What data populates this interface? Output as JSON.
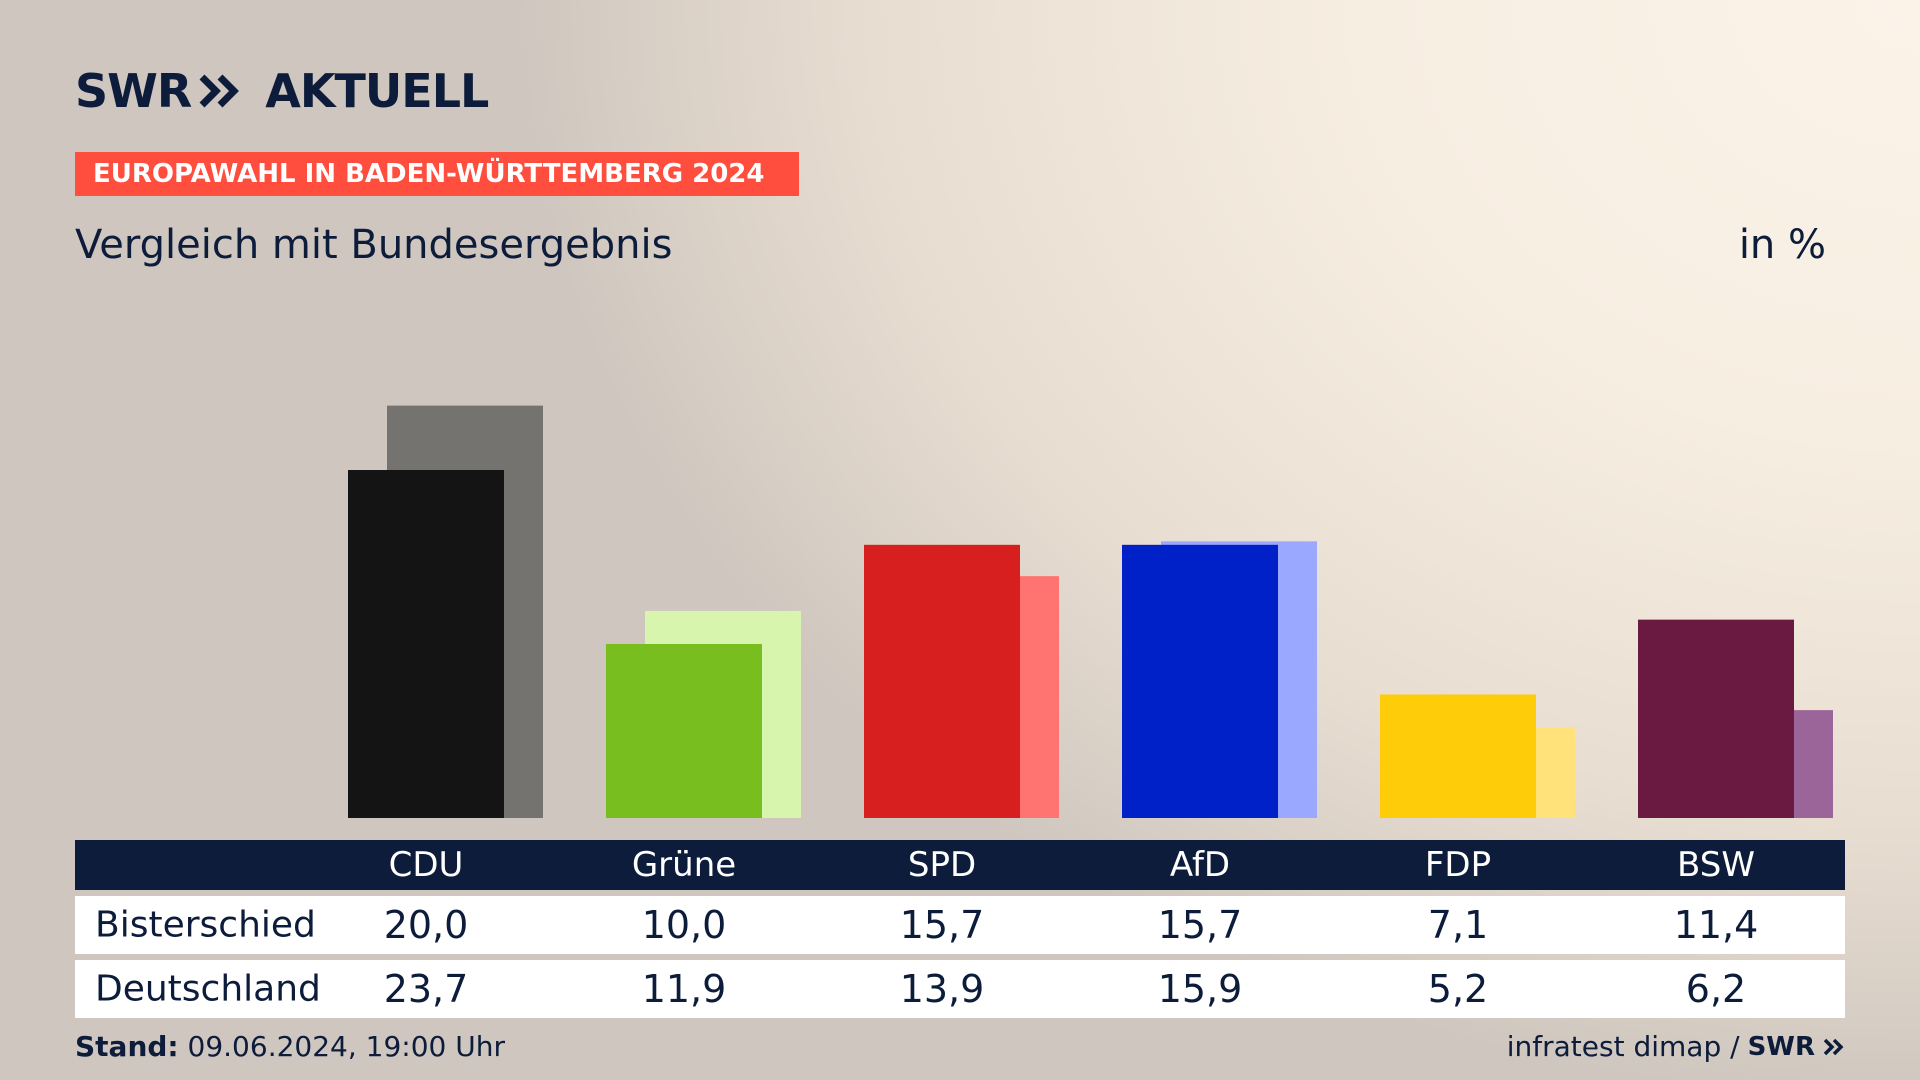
{
  "header": {
    "logo_left": "SWR",
    "logo_right": "AKTUELL",
    "banner": "EUROPAWAHL IN BADEN-WÜRTTEMBERG 2024",
    "subtitle": "Vergleich mit Bundesergebnis",
    "unit": "in %"
  },
  "footer": {
    "stand_label": "Stand:",
    "stand_value": "09.06.2024, 19:00 Uhr",
    "source": "infratest dimap /",
    "source_logo": "SWR"
  },
  "chart_data": {
    "type": "bar",
    "categories": [
      "CDU",
      "Grüne",
      "SPD",
      "AfD",
      "FDP",
      "BSW"
    ],
    "series": [
      {
        "name": "Bisterschied",
        "values": [
          20.0,
          10.0,
          15.7,
          15.7,
          7.1,
          11.4
        ],
        "labels": [
          "20,0",
          "10,0",
          "15,7",
          "15,7",
          "7,1",
          "11,4"
        ],
        "colors": [
          "#141414",
          "#78be1e",
          "#d71f20",
          "#0020c8",
          "#ffcc0a",
          "#6a1a40"
        ]
      },
      {
        "name": "Deutschland",
        "values": [
          23.7,
          11.9,
          13.9,
          15.9,
          5.2,
          6.2
        ],
        "labels": [
          "23,7",
          "11,9",
          "13,9",
          "15,9",
          "5,2",
          "6,2"
        ],
        "colors": [
          "#757370",
          "#d8f5ae",
          "#ff7470",
          "#9ba8ff",
          "#ffe37a",
          "#9c659a"
        ]
      }
    ],
    "ylim": [
      0,
      24
    ],
    "grid": false,
    "xlabel": "",
    "ylabel": ""
  }
}
